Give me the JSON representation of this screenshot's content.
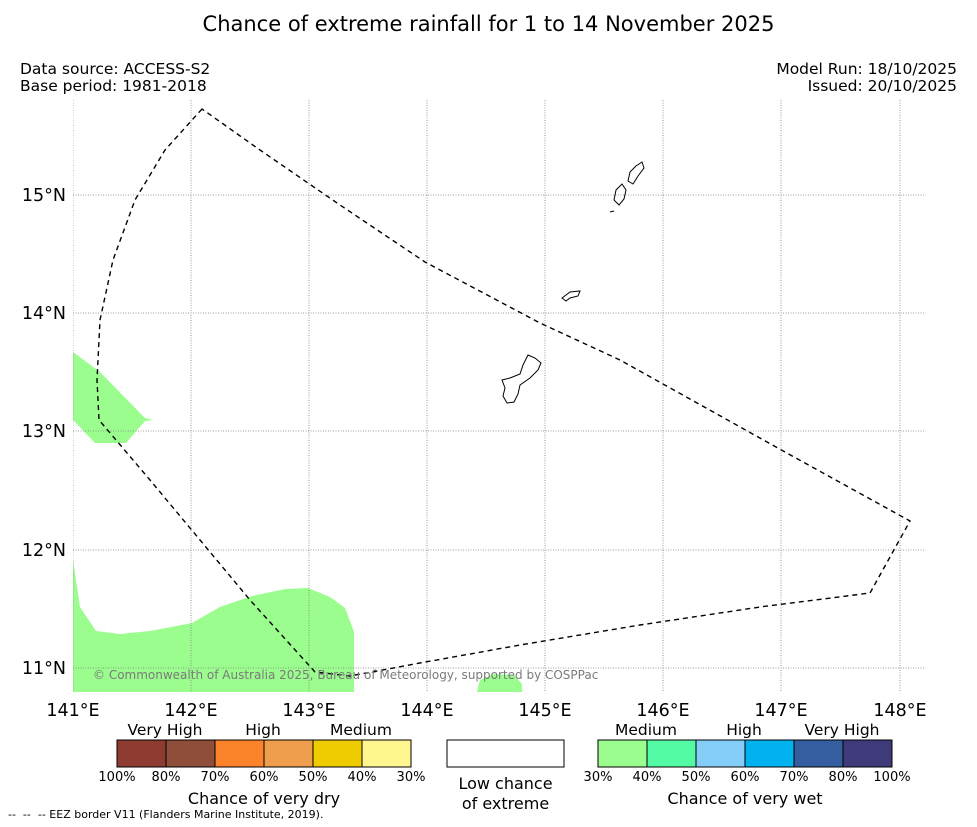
{
  "title": "Chance of extreme rainfall for 1 to 14 November 2025",
  "data_source": "Data source: ACCESS-S2",
  "base_period": "Base period: 1981-2018",
  "model_run": "Model Run: 18/10/2025",
  "issued": "Issued: 20/10/2025",
  "map": {
    "lon_labels": [
      "141°E",
      "142°E",
      "143°E",
      "144°E",
      "145°E",
      "146°E",
      "147°E",
      "148°E"
    ],
    "lat_labels": [
      "15°N",
      "14°N",
      "13°N",
      "12°N",
      "11°N"
    ],
    "copyright": "© Commonwealth of Australia 2025, Bureau of Meteorology, supported by COSPPac",
    "colors": {
      "medium_wet": "#9afd8d",
      "grid": "#7f7f7f",
      "border": "#000000"
    }
  },
  "legend": {
    "dry": {
      "band_titles": [
        "Very High",
        "High",
        "Medium"
      ],
      "colors": [
        "#8e3b32",
        "#8e4e3a",
        "#fd832a",
        "#ee9e4c",
        "#efcc00",
        "#fff68f"
      ],
      "ticks": [
        "100%",
        "80%",
        "70%",
        "60%",
        "50%",
        "40%",
        "30%"
      ],
      "caption": "Chance of very dry"
    },
    "low": {
      "caption_line1": "Low chance",
      "caption_line2": "of extreme",
      "color": "#ffffff"
    },
    "wet": {
      "band_titles": [
        "Medium",
        "High",
        "Very High"
      ],
      "colors": [
        "#9afd8d",
        "#53fca4",
        "#85cdf9",
        "#01b2ef",
        "#345ea0",
        "#3f3b7b"
      ],
      "ticks": [
        "30%",
        "40%",
        "50%",
        "60%",
        "70%",
        "80%",
        "100%"
      ],
      "caption": "Chance of very wet"
    }
  },
  "footer": "--  --  -- EEZ border V11 (Flanders Marine Institute, 2019)."
}
